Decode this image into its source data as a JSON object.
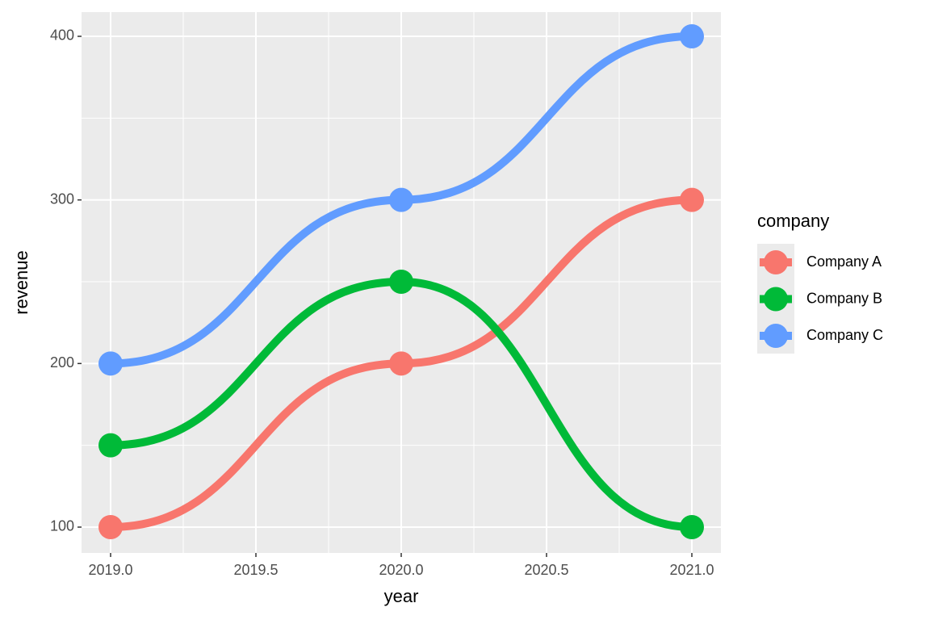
{
  "chart_data": {
    "type": "line",
    "curve": "sigmoid",
    "x_label": "year",
    "y_label": "revenue",
    "legend_title": "company",
    "x": [
      2019,
      2020,
      2021
    ],
    "series": [
      {
        "name": "Company A",
        "color": "#F8766D",
        "values": [
          100,
          200,
          300
        ]
      },
      {
        "name": "Company B",
        "color": "#00BA38",
        "values": [
          150,
          250,
          100
        ]
      },
      {
        "name": "Company C",
        "color": "#619CFF",
        "values": [
          200,
          300,
          400
        ]
      }
    ],
    "xlim": [
      2018.9,
      2021.1
    ],
    "xticks": [
      {
        "value": 2019,
        "label": "2019.0"
      },
      {
        "value": 2019.5,
        "label": "2019.5"
      },
      {
        "value": 2020,
        "label": "2020.0"
      },
      {
        "value": 2020.5,
        "label": "2020.5"
      },
      {
        "value": 2021,
        "label": "2021.0"
      }
    ],
    "ylim": [
      84.2,
      414.8
    ],
    "yticks": [
      100,
      200,
      300,
      400
    ],
    "grid": true,
    "legend": "right"
  }
}
